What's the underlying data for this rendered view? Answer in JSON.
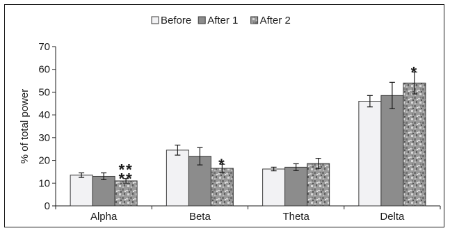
{
  "chart_data": {
    "type": "bar",
    "categories": [
      "Alpha",
      "Beta",
      "Theta",
      "Delta"
    ],
    "ylabel": "% of total power",
    "ylim": [
      0,
      70
    ],
    "yticks": [
      0,
      10,
      20,
      30,
      40,
      50,
      60,
      70
    ],
    "grid": false,
    "legend": "top-center",
    "series": [
      {
        "name": "Before",
        "color": "#f2f2f4",
        "pattern": "solid",
        "values": [
          13.5,
          24.5,
          16.2,
          46.0
        ],
        "errors": [
          1.0,
          2.2,
          0.8,
          2.5
        ]
      },
      {
        "name": "After 1",
        "color": "#8c8c8c",
        "pattern": "solid",
        "values": [
          13.0,
          21.8,
          17.0,
          48.5
        ],
        "errors": [
          1.5,
          3.8,
          1.5,
          5.8
        ]
      },
      {
        "name": "After 2",
        "color": "#9a9a9a",
        "pattern": "noise",
        "values": [
          11.0,
          16.5,
          18.6,
          54.0
        ],
        "errors": [
          1.0,
          1.8,
          2.3,
          4.8
        ]
      }
    ],
    "annotations": [
      {
        "category": "Alpha",
        "series": "After 2",
        "text": "**"
      },
      {
        "category": "Alpha",
        "series": "After 2",
        "text": "**"
      },
      {
        "category": "Beta",
        "series": "After 2",
        "text": "*"
      },
      {
        "category": "Delta",
        "series": "After 2",
        "text": "*"
      }
    ]
  }
}
